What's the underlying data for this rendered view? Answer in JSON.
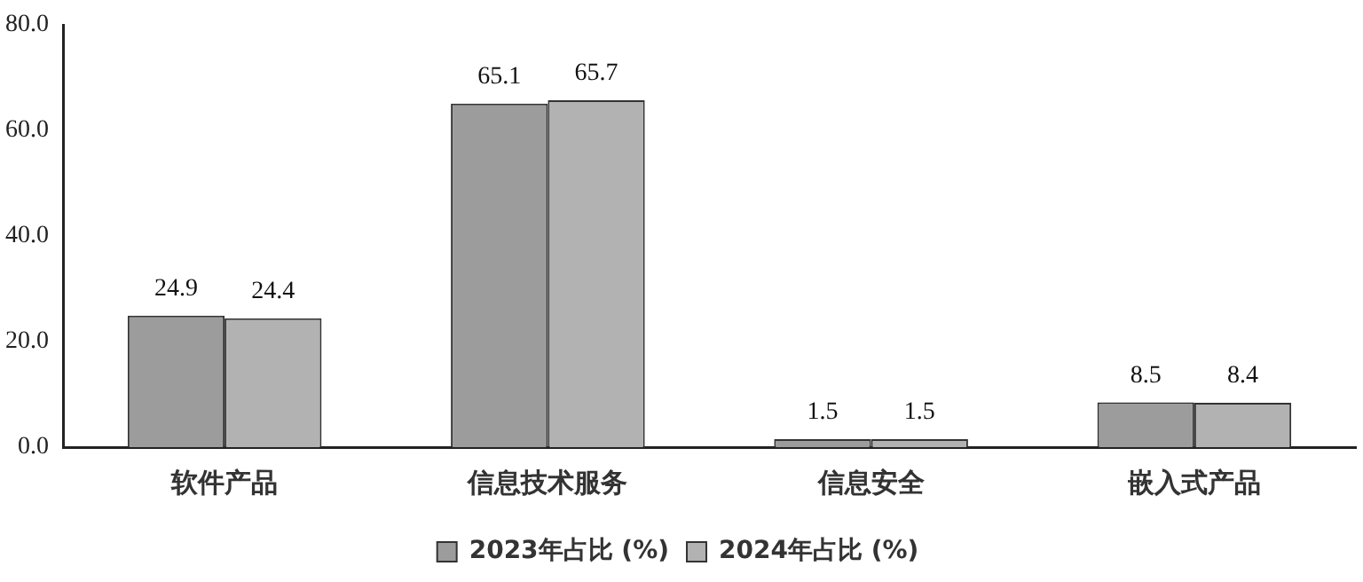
{
  "chart_data": {
    "type": "bar",
    "categories": [
      "软件产品",
      "信息技术服务",
      "信息安全",
      "嵌入式产品"
    ],
    "series": [
      {
        "name": "2023年占比 (%)",
        "color": "#9c9c9c",
        "values": [
          24.9,
          65.1,
          1.5,
          8.5
        ]
      },
      {
        "name": "2024年占比 (%)",
        "color": "#b2b2b2",
        "values": [
          24.4,
          65.7,
          1.5,
          8.4
        ]
      }
    ],
    "ylim": [
      0,
      80
    ],
    "yticks": [
      {
        "value": 0,
        "label": "0.0"
      },
      {
        "value": 20,
        "label": "20.0"
      },
      {
        "value": 40,
        "label": "40.0"
      },
      {
        "value": 60,
        "label": "60.0"
      },
      {
        "value": 80,
        "label": "80.0"
      }
    ],
    "grid": false,
    "legend": "bottom",
    "data_labels": true
  }
}
